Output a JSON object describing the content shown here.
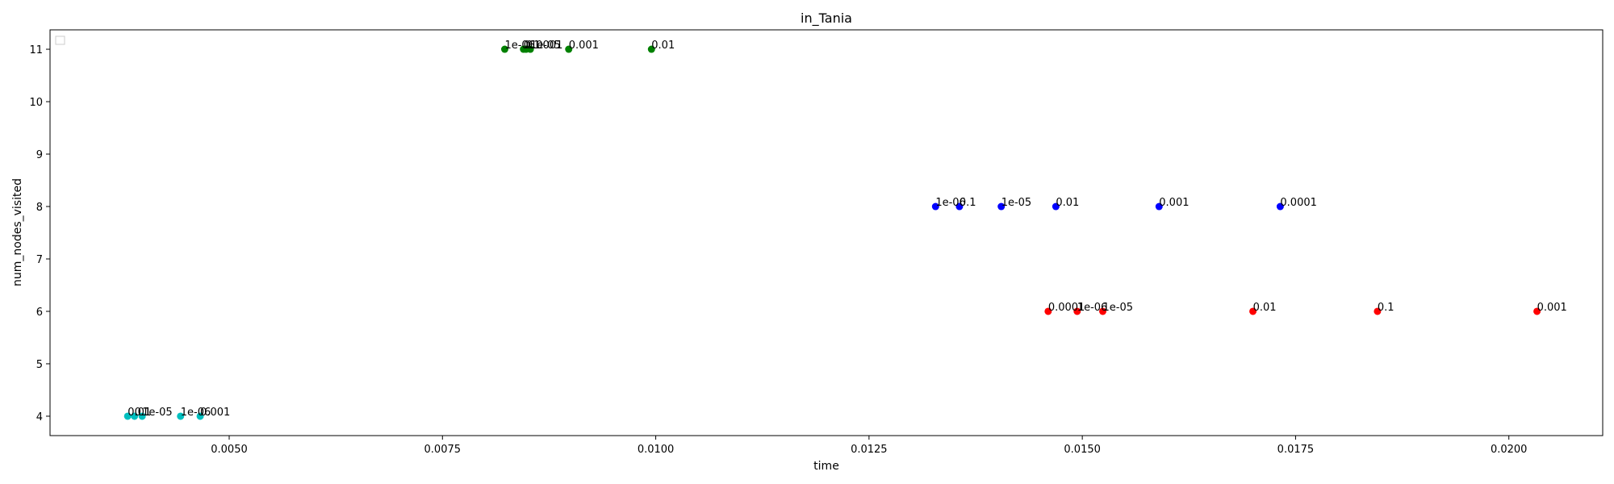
{
  "chart_data": {
    "type": "scatter",
    "title": "in_Tania",
    "xlabel": "time",
    "ylabel": "num_nodes_visited",
    "xlim": [
      0.0029,
      0.0211
    ],
    "ylim": [
      3.63,
      11.37
    ],
    "xticks": [
      0.005,
      0.0075,
      0.01,
      0.0125,
      0.015,
      0.0175,
      0.02
    ],
    "xtick_labels": [
      "0.0050",
      "0.0075",
      "0.0100",
      "0.0125",
      "0.0150",
      "0.0175",
      "0.0200"
    ],
    "yticks": [
      4,
      5,
      6,
      7,
      8,
      9,
      10,
      11
    ],
    "ytick_labels": [
      "4",
      "5",
      "6",
      "7",
      "8",
      "9",
      "10",
      "11"
    ],
    "grid": false,
    "legend": "top-left",
    "series": [
      {
        "color": "#008000",
        "points": [
          {
            "x": 0.00823,
            "y": 11,
            "label": "1e-06"
          },
          {
            "x": 0.00845,
            "y": 11,
            "label": "0.1"
          },
          {
            "x": 0.00848,
            "y": 11,
            "label": "0.0001"
          },
          {
            "x": 0.00853,
            "y": 11,
            "label": "1e-05"
          },
          {
            "x": 0.00898,
            "y": 11,
            "label": "0.001"
          },
          {
            "x": 0.00995,
            "y": 11,
            "label": "0.01"
          }
        ]
      },
      {
        "color": "#0000ff",
        "points": [
          {
            "x": 0.01328,
            "y": 8,
            "label": "1e-06"
          },
          {
            "x": 0.01356,
            "y": 8,
            "label": "0.1"
          },
          {
            "x": 0.01405,
            "y": 8,
            "label": "1e-05"
          },
          {
            "x": 0.01469,
            "y": 8,
            "label": "0.01"
          },
          {
            "x": 0.0159,
            "y": 8,
            "label": "0.001"
          },
          {
            "x": 0.01732,
            "y": 8,
            "label": "0.0001"
          }
        ]
      },
      {
        "color": "#ff0000",
        "points": [
          {
            "x": 0.0146,
            "y": 6,
            "label": "0.0001"
          },
          {
            "x": 0.01494,
            "y": 6,
            "label": "1e-06"
          },
          {
            "x": 0.01524,
            "y": 6,
            "label": "1e-05"
          },
          {
            "x": 0.017,
            "y": 6,
            "label": "0.01"
          },
          {
            "x": 0.01846,
            "y": 6,
            "label": "0.1"
          },
          {
            "x": 0.02033,
            "y": 6,
            "label": "0.001"
          }
        ]
      },
      {
        "color": "#00bfbf",
        "points": [
          {
            "x": 0.00381,
            "y": 4,
            "label": "0.01"
          },
          {
            "x": 0.00389,
            "y": 4,
            "label": "0.1"
          },
          {
            "x": 0.00398,
            "y": 4,
            "label": "1e-05"
          },
          {
            "x": 0.00443,
            "y": 4,
            "label": "1e-06"
          },
          {
            "x": 0.00466,
            "y": 4,
            "label": "0.001"
          }
        ]
      }
    ]
  }
}
